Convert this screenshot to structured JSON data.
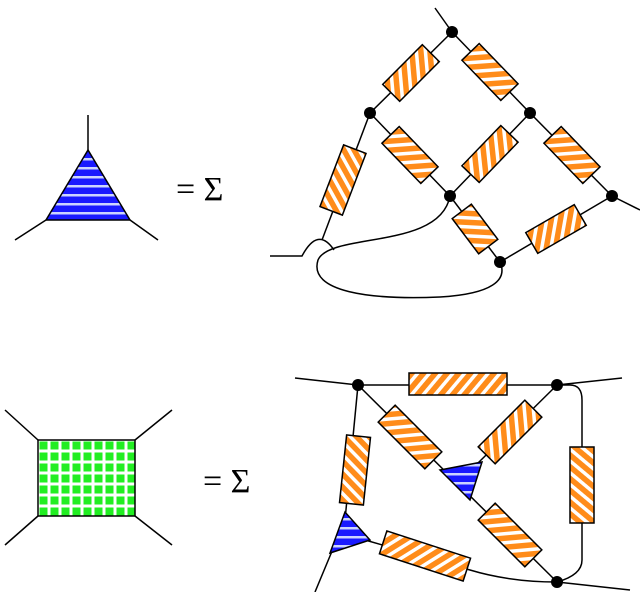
{
  "equations": [
    {
      "rhs_label": "= Σ"
    },
    {
      "rhs_label": "= Σ"
    }
  ]
}
